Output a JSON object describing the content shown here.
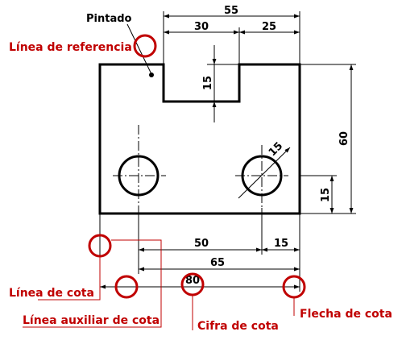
{
  "labels": {
    "pintado": "Pintado",
    "linea_referencia": "Línea de referencia",
    "linea_cota": "Línea de cota",
    "linea_auxiliar": "Línea auxiliar de cota",
    "cifra_cota": "Cifra de cota",
    "flecha_cota": "Flecha de cota"
  },
  "dimensions": {
    "d55": "55",
    "d30": "30",
    "d25": "25",
    "d15_slot": "15",
    "d60": "60",
    "d15_hole_height": "15",
    "d15_diameter": "15",
    "d50": "50",
    "d15_bottom": "15",
    "d65": "65",
    "d80": "80"
  },
  "colors": {
    "annotation": "#c00000",
    "line": "#000000"
  }
}
